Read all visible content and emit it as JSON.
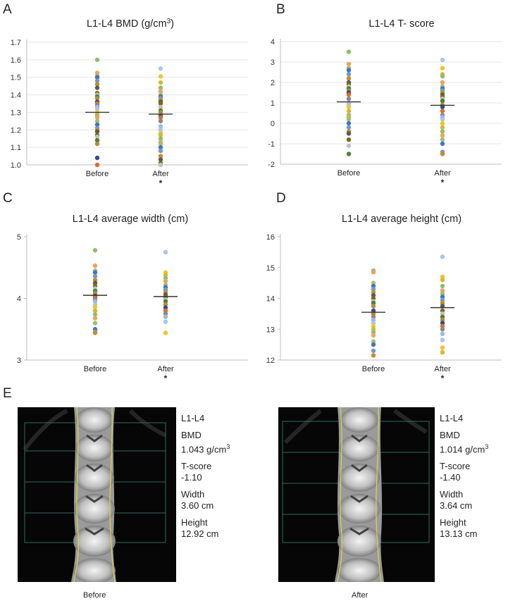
{
  "panels": {
    "A": "A",
    "B": "B",
    "C": "C",
    "D": "D",
    "E": "E"
  },
  "chart_data": [
    {
      "id": "A",
      "type": "scatter",
      "title": "L1-L4  BMD (g/cm",
      "title_sup": "3",
      "title_end": ")",
      "categories": [
        "Before",
        "After"
      ],
      "significance": [
        "",
        "*"
      ],
      "yticks": [
        "1.0",
        "1.1",
        "1.2",
        "1.3",
        "1.4",
        "1.5",
        "1.6",
        "1.7"
      ],
      "ylim": [
        1.0,
        1.7
      ],
      "grid": true,
      "means": [
        1.3,
        1.29
      ],
      "series": [
        {
          "name": "Before",
          "values": [
            1.6,
            1.525,
            1.51,
            1.5,
            1.48,
            1.46,
            1.44,
            1.41,
            1.4,
            1.39,
            1.38,
            1.36,
            1.35,
            1.34,
            1.33,
            1.32,
            1.3,
            1.29,
            1.28,
            1.27,
            1.25,
            1.23,
            1.21,
            1.2,
            1.19,
            1.17,
            1.16,
            1.14,
            1.12,
            1.04,
            1.0
          ]
        },
        {
          "name": "After",
          "values": [
            1.55,
            1.505,
            1.47,
            1.44,
            1.42,
            1.4,
            1.39,
            1.38,
            1.37,
            1.36,
            1.35,
            1.33,
            1.31,
            1.3,
            1.28,
            1.27,
            1.25,
            1.22,
            1.2,
            1.18,
            1.17,
            1.15,
            1.13,
            1.12,
            1.1,
            1.08,
            1.05,
            1.03,
            1.01,
            1.0
          ]
        }
      ]
    },
    {
      "id": "B",
      "type": "scatter",
      "title": "L1-L4 T- score",
      "title_sup": "",
      "title_end": "",
      "categories": [
        "Before",
        "After"
      ],
      "significance": [
        "",
        "*"
      ],
      "yticks": [
        "-2",
        "-1",
        "0",
        "1",
        "2",
        "3",
        "4"
      ],
      "ylim": [
        -2,
        4
      ],
      "grid": true,
      "means": [
        1.05,
        0.88
      ],
      "series": [
        {
          "name": "Before",
          "values": [
            3.5,
            2.9,
            2.7,
            2.6,
            2.4,
            2.2,
            2.0,
            1.9,
            1.8,
            1.7,
            1.6,
            1.5,
            1.4,
            1.2,
            1.0,
            0.9,
            0.8,
            0.6,
            0.4,
            0.3,
            0.2,
            0.0,
            -0.2,
            -0.4,
            -0.5,
            -0.8,
            -1.1,
            -1.5
          ]
        },
        {
          "name": "After",
          "values": [
            3.1,
            2.7,
            2.4,
            2.3,
            2.0,
            1.8,
            1.7,
            1.6,
            1.5,
            1.4,
            1.3,
            1.2,
            1.1,
            0.9,
            0.8,
            0.6,
            0.4,
            0.3,
            0.2,
            0.0,
            -0.2,
            -0.4,
            -0.6,
            -0.8,
            -1.0,
            -1.4,
            -1.5
          ]
        }
      ]
    },
    {
      "id": "C",
      "type": "scatter",
      "title": "L1-L4 average width (cm)",
      "title_sup": "",
      "title_end": "",
      "categories": [
        "Before",
        "After"
      ],
      "significance": [
        "",
        "*"
      ],
      "yticks": [
        "3",
        "4",
        "5"
      ],
      "ylim": [
        3,
        5
      ],
      "grid": false,
      "means": [
        4.05,
        4.03
      ],
      "series": [
        {
          "name": "Before",
          "values": [
            4.78,
            4.53,
            4.45,
            4.42,
            4.36,
            4.3,
            4.25,
            4.2,
            4.16,
            4.12,
            4.08,
            4.04,
            4.01,
            3.98,
            3.95,
            3.9,
            3.86,
            3.8,
            3.74,
            3.68,
            3.6,
            3.5,
            3.46,
            3.44
          ]
        },
        {
          "name": "After",
          "values": [
            4.75,
            4.42,
            4.38,
            4.33,
            4.28,
            4.22,
            4.18,
            4.14,
            4.1,
            4.06,
            4.02,
            3.98,
            3.95,
            3.9,
            3.85,
            3.8,
            3.75,
            3.7,
            3.62,
            3.44
          ]
        }
      ]
    },
    {
      "id": "D",
      "type": "scatter",
      "title": "L1-L4 average height (cm)",
      "title_sup": "",
      "title_end": "",
      "categories": [
        "Before",
        "After"
      ],
      "significance": [
        "",
        "*"
      ],
      "yticks": [
        "12",
        "13",
        "14",
        "15",
        "16"
      ],
      "ylim": [
        12,
        16
      ],
      "grid": false,
      "means": [
        13.55,
        13.7
      ],
      "series": [
        {
          "name": "Before",
          "values": [
            14.9,
            14.85,
            14.5,
            14.4,
            14.3,
            14.2,
            14.1,
            14.0,
            13.9,
            13.85,
            13.75,
            13.6,
            13.5,
            13.4,
            13.3,
            13.2,
            13.1,
            13.0,
            12.9,
            12.8,
            12.6,
            12.5,
            12.3,
            12.15
          ]
        },
        {
          "name": "After",
          "values": [
            15.35,
            14.7,
            14.6,
            14.4,
            14.25,
            14.15,
            14.05,
            13.95,
            13.85,
            13.75,
            13.6,
            13.5,
            13.4,
            13.3,
            13.2,
            13.1,
            13.0,
            12.85,
            12.65,
            12.4,
            12.25
          ]
        }
      ]
    }
  ],
  "dot_palette": [
    "#8dc06a",
    "#2f4f8c",
    "#6c9bd2",
    "#a9c4e8",
    "#c0c0c0",
    "#f0a060",
    "#e06a2c",
    "#c98b2a",
    "#f2c230",
    "#4f7f35",
    "#9cc270",
    "#888888",
    "#5a5a5a",
    "#d4b830",
    "#b08c3c",
    "#4a72b8",
    "#a0b8dc",
    "#7e6a14"
  ],
  "scans": [
    {
      "caption": "Before",
      "region": "L1-L4",
      "bmd_label": "BMD",
      "bmd_value": "1.043 g/cm",
      "bmd_sup": "3",
      "tscore_label": "T-score",
      "tscore_value": "-1.10",
      "width_label": "Width",
      "width_value": "3.60 cm",
      "height_label": "Height",
      "height_value": "12.92 cm"
    },
    {
      "caption": "After",
      "region": "L1-L4",
      "bmd_label": "BMD",
      "bmd_value": "1.014 g/cm",
      "bmd_sup": "3",
      "tscore_label": "T-score",
      "tscore_value": "-1.40",
      "width_label": "Width",
      "width_value": "3.64 cm",
      "height_label": "Height",
      "height_value": "13.13 cm"
    }
  ]
}
